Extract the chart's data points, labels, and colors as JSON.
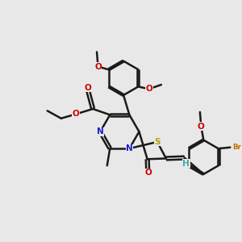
{
  "bg": "#e8e8e8",
  "bc": "#1a1a1a",
  "bw": 1.8,
  "dbo": 0.06,
  "colors": {
    "N": "#1a1acc",
    "O": "#cc0000",
    "S": "#b8a000",
    "Br": "#c07000",
    "H": "#40aaaa",
    "C": "#1a1a1a"
  },
  "fsa": 7.5,
  "fss": 6.2
}
